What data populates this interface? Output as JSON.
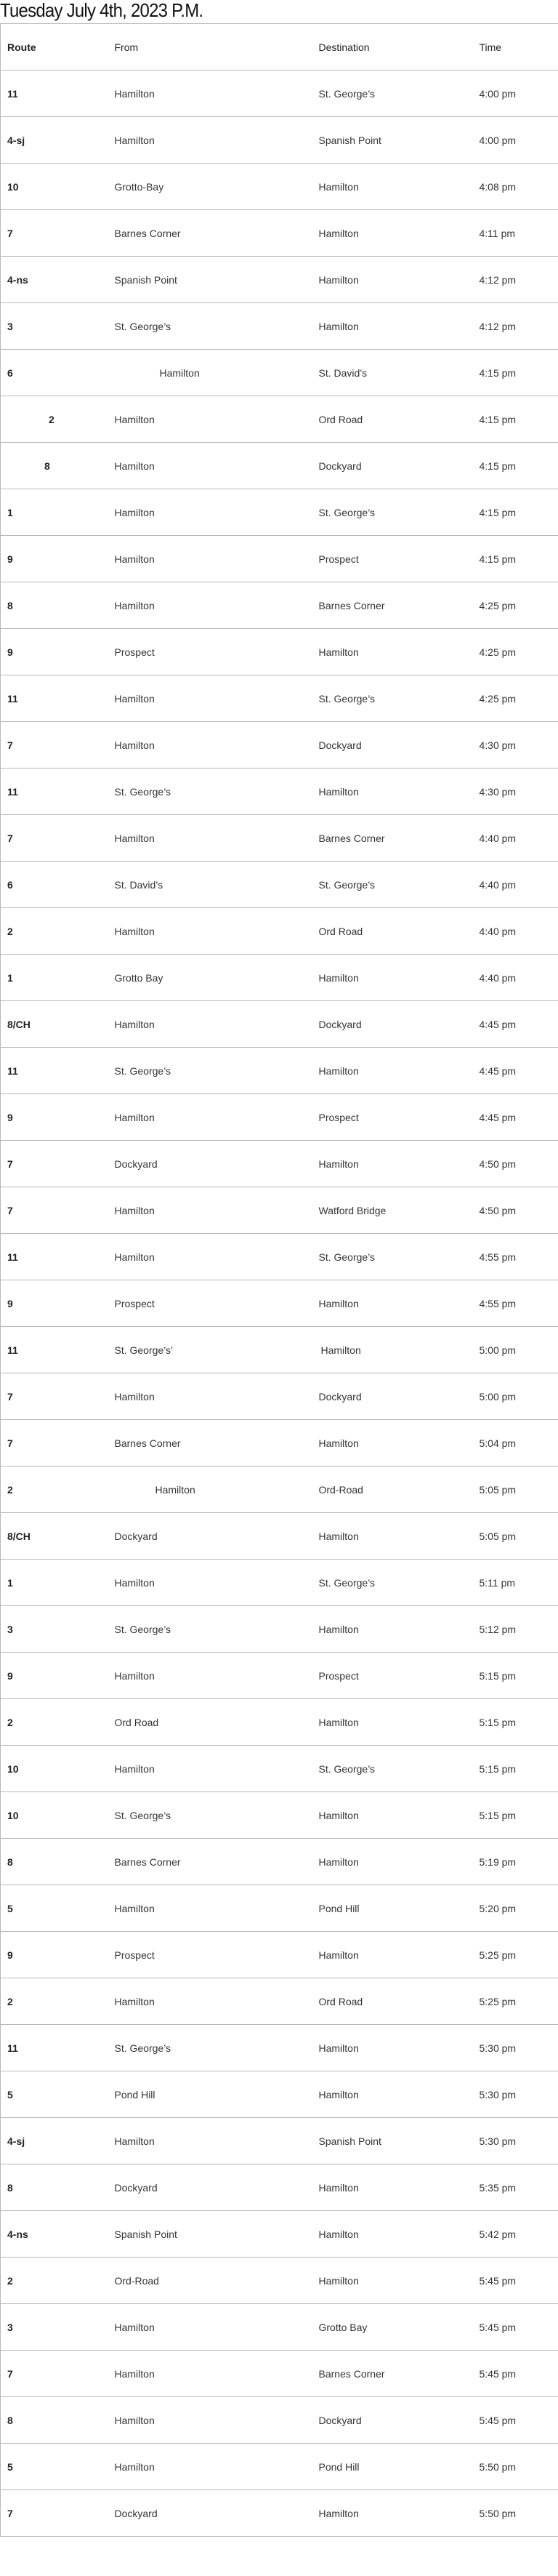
{
  "page": {
    "title": "Tuesday July 4th, 2023 P.M."
  },
  "table": {
    "headers": {
      "route": "Route",
      "from": "From",
      "destination": "Destination",
      "time": "Time"
    },
    "rows": [
      {
        "route": "11",
        "from": "Hamilton",
        "destination": "St. George’s",
        "time": "4:00 pm"
      },
      {
        "route": "4-sj",
        "from": "Hamilton",
        "destination": "Spanish Point",
        "time": "4:00 pm"
      },
      {
        "route": "10",
        "from": "Grotto-Bay",
        "destination": "Hamilton",
        "time": "4:08 pm"
      },
      {
        "route": "7",
        "from": "Barnes Corner",
        "destination": "Hamilton",
        "time": "4:11 pm"
      },
      {
        "route": "4-ns",
        "from": "Spanish Point",
        "destination": "Hamilton",
        "time": "4:12 pm"
      },
      {
        "route": "3",
        "from": "St. George’s",
        "destination": "Hamilton",
        "time": "4:12 pm"
      },
      {
        "route": "6",
        "from": "Hamilton",
        "destination": "St. David’s",
        "time": "4:15 pm"
      },
      {
        "route": "2",
        "from": "Hamilton",
        "destination": "Ord Road",
        "time": "4:15 pm"
      },
      {
        "route": "8",
        "from": "Hamilton",
        "destination": "Dockyard",
        "time": "4:15 pm"
      },
      {
        "route": "1",
        "from": "Hamilton",
        "destination": "St. George’s",
        "time": "4:15 pm"
      },
      {
        "route": "9",
        "from": "Hamilton",
        "destination": "Prospect",
        "time": "4:15 pm"
      },
      {
        "route": "8",
        "from": "Hamilton",
        "destination": "Barnes Corner",
        "time": "4:25 pm"
      },
      {
        "route": "9",
        "from": "Prospect",
        "destination": "Hamilton",
        "time": "4:25 pm"
      },
      {
        "route": "11",
        "from": "Hamilton",
        "destination": "St. George’s",
        "time": "4:25 pm"
      },
      {
        "route": "7",
        "from": "Hamilton",
        "destination": "Dockyard",
        "time": "4:30 pm"
      },
      {
        "route": "11",
        "from": "St. George’s",
        "destination": "Hamilton",
        "time": "4:30 pm"
      },
      {
        "route": "7",
        "from": "Hamilton",
        "destination": "Barnes Corner",
        "time": "4:40 pm"
      },
      {
        "route": "6",
        "from": "St. David’s",
        "destination": "St. George’s",
        "time": "4:40 pm"
      },
      {
        "route": "2",
        "from": "Hamilton",
        "destination": "Ord Road",
        "time": "4:40 pm"
      },
      {
        "route": "1",
        "from": "Grotto Bay",
        "destination": "Hamilton",
        "time": "4:40 pm"
      },
      {
        "route": "8/CH",
        "from": "Hamilton",
        "destination": "Dockyard",
        "time": "4:45 pm"
      },
      {
        "route": "11",
        "from": "St. George’s",
        "destination": "Hamilton",
        "time": "4:45 pm"
      },
      {
        "route": "9",
        "from": "Hamilton",
        "destination": "Prospect",
        "time": "4:45 pm"
      },
      {
        "route": "7",
        "from": "Dockyard",
        "destination": "Hamilton",
        "time": "4:50 pm"
      },
      {
        "route": "7",
        "from": "Hamilton",
        "destination": "Watford Bridge",
        "time": "4:50 pm"
      },
      {
        "route": "11",
        "from": "Hamilton",
        "destination": "St. George’s",
        "time": "4:55 pm"
      },
      {
        "route": "9",
        "from": "Prospect",
        "destination": "Hamilton",
        "time": "4:55 pm"
      },
      {
        "route": "11",
        "from": "St. George’s’",
        "destination": "Hamilton",
        "time": "5:00 pm"
      },
      {
        "route": "7",
        "from": "Hamilton",
        "destination": "Dockyard",
        "time": "5:00 pm"
      },
      {
        "route": "7",
        "from": "Barnes Corner",
        "destination": "Hamilton",
        "time": "5:04 pm"
      },
      {
        "route": "2",
        "from": "Hamilton",
        "destination": "Ord-Road",
        "time": "5:05 pm"
      },
      {
        "route": "8/CH",
        "from": "Dockyard",
        "destination": "Hamilton",
        "time": "5:05 pm"
      },
      {
        "route": "1",
        "from": "Hamilton",
        "destination": "St. George’s",
        "time": "5:11 pm"
      },
      {
        "route": "3",
        "from": "St. George’s",
        "destination": "Hamilton",
        "time": "5:12 pm"
      },
      {
        "route": "9",
        "from": "Hamilton",
        "destination": "Prospect",
        "time": "5:15 pm"
      },
      {
        "route": "2",
        "from": "Ord Road",
        "destination": "Hamilton",
        "time": "5:15 pm"
      },
      {
        "route": "10",
        "from": "Hamilton",
        "destination": "St. George’s",
        "time": "5:15 pm"
      },
      {
        "route": "10",
        "from": "St. George’s",
        "destination": "Hamilton",
        "time": "5:15 pm"
      },
      {
        "route": "8",
        "from": "Barnes Corner",
        "destination": "Hamilton",
        "time": "5:19 pm"
      },
      {
        "route": "5",
        "from": "Hamilton",
        "destination": "Pond Hill",
        "time": "5:20 pm"
      },
      {
        "route": "9",
        "from": "Prospect",
        "destination": "Hamilton",
        "time": "5:25 pm"
      },
      {
        "route": "2",
        "from": "Hamilton",
        "destination": "Ord Road",
        "time": "5:25 pm"
      },
      {
        "route": "11",
        "from": "St. George’s",
        "destination": "Hamilton",
        "time": "5:30 pm"
      },
      {
        "route": "5",
        "from": "Pond Hill",
        "destination": "Hamilton",
        "time": "5:30 pm"
      },
      {
        "route": "4-sj",
        "from": "Hamilton",
        "destination": "Spanish Point",
        "time": "5:30 pm"
      },
      {
        "route": "8",
        "from": "Dockyard",
        "destination": "Hamilton",
        "time": "5:35 pm"
      },
      {
        "route": "4-ns",
        "from": "Spanish Point",
        "destination": "Hamilton",
        "time": "5:42 pm"
      },
      {
        "route": "2",
        "from": "Ord-Road",
        "destination": "Hamilton",
        "time": "5:45 pm"
      },
      {
        "route": "3",
        "from": "Hamilton",
        "destination": "Grotto Bay",
        "time": "5:45 pm"
      },
      {
        "route": "7",
        "from": "Hamilton",
        "destination": "Barnes Corner",
        "time": "5:45 pm"
      },
      {
        "route": "8",
        "from": "Hamilton",
        "destination": "Dockyard",
        "time": "5:45 pm"
      },
      {
        "route": "5",
        "from": "Hamilton",
        "destination": "Pond Hill",
        "time": "5:50 pm"
      },
      {
        "route": "7",
        "from": "Dockyard",
        "destination": "Hamilton",
        "time": "5:50 pm"
      }
    ]
  }
}
